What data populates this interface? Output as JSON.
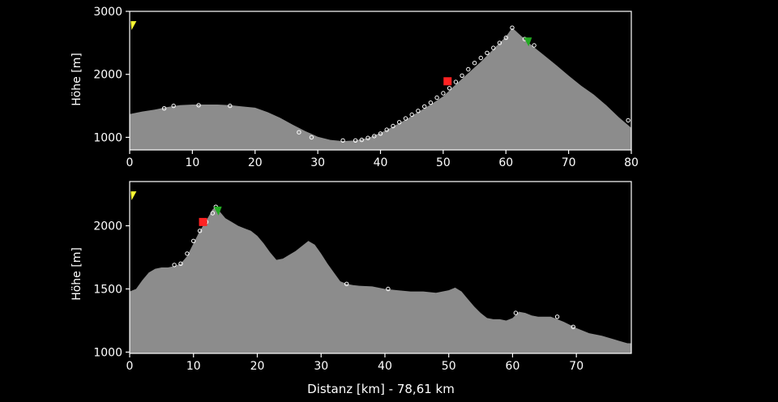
{
  "colors": {
    "background": "#000000",
    "area": "#8c8c8c",
    "axis": "#ffffff",
    "marker": "#ffffff",
    "start_flag": "#ffff33",
    "peak_flag": "#22aa22",
    "red_marker": "#ff2222"
  },
  "x_axis_title": "Distanz [km] - 78,61 km",
  "chart_data": [
    {
      "type": "area",
      "title": "",
      "ylabel": "Höhe [m]",
      "xlim": [
        0,
        80
      ],
      "ylim": [
        800,
        3000
      ],
      "x_ticks": [
        0,
        10,
        20,
        30,
        40,
        50,
        60,
        70,
        80
      ],
      "y_ticks": [
        1000,
        2000,
        3000
      ],
      "profile": {
        "x": [
          0,
          2,
          4,
          6,
          8,
          10,
          12,
          14,
          16,
          18,
          20,
          22,
          24,
          26,
          28,
          30,
          32,
          34,
          36,
          38,
          40,
          42,
          44,
          46,
          48,
          50,
          52,
          54,
          56,
          58,
          60,
          61,
          62,
          64,
          66,
          68,
          70,
          72,
          74,
          76,
          78,
          80
        ],
        "y": [
          1370,
          1410,
          1440,
          1480,
          1510,
          1520,
          1520,
          1520,
          1510,
          1490,
          1470,
          1400,
          1310,
          1200,
          1100,
          1010,
          960,
          940,
          950,
          990,
          1070,
          1170,
          1280,
          1400,
          1520,
          1650,
          1840,
          2020,
          2200,
          2400,
          2600,
          2740,
          2650,
          2470,
          2310,
          2150,
          1980,
          1820,
          1680,
          1510,
          1320,
          1150
        ]
      },
      "markers": {
        "x": [
          5.5,
          7,
          11,
          16,
          27,
          29,
          34,
          36,
          37,
          38,
          39,
          40,
          41,
          42,
          43,
          44,
          45,
          46,
          47,
          48,
          49,
          50,
          51,
          52,
          53,
          54,
          55,
          56,
          57,
          58,
          59,
          60,
          61,
          63,
          64.5,
          79.5
        ],
        "y": [
          1460,
          1500,
          1510,
          1500,
          1080,
          1000,
          950,
          950,
          960,
          990,
          1020,
          1060,
          1120,
          1180,
          1240,
          1300,
          1360,
          1420,
          1490,
          1550,
          1630,
          1700,
          1780,
          1880,
          1980,
          2080,
          2180,
          2260,
          2340,
          2420,
          2500,
          2580,
          2740,
          2560,
          2460,
          1270
        ]
      },
      "start_flag": {
        "x": 0.3,
        "y": 2780
      },
      "red_marker": {
        "x": 50.7,
        "y": 1890
      },
      "peak_flag": {
        "x": 63.5,
        "y": 2520
      }
    },
    {
      "type": "area",
      "title": "",
      "ylabel": "Höhe [m]",
      "xlim": [
        0,
        78.61
      ],
      "ylim": [
        990,
        2350
      ],
      "x_ticks": [
        0,
        10,
        20,
        30,
        40,
        50,
        60,
        70
      ],
      "y_ticks": [
        1000,
        1500,
        2000
      ],
      "profile": {
        "x": [
          0,
          1,
          2,
          3,
          4,
          5,
          6,
          7,
          8,
          9,
          10,
          11,
          12,
          13,
          13.5,
          14,
          15,
          16,
          17,
          18,
          19,
          20,
          21,
          22,
          23,
          24,
          25,
          26,
          27,
          28,
          29,
          30,
          31,
          32,
          33,
          34,
          35,
          36,
          38,
          40,
          42,
          44,
          46,
          48,
          50,
          51,
          52,
          53,
          54,
          55,
          56,
          57,
          58,
          59,
          60,
          61,
          62,
          63,
          64,
          66,
          68,
          70,
          72,
          74,
          76,
          78,
          78.61
        ],
        "y": [
          1480,
          1500,
          1570,
          1630,
          1660,
          1670,
          1670,
          1680,
          1700,
          1760,
          1860,
          1960,
          2040,
          2130,
          2150,
          2120,
          2060,
          2030,
          2000,
          1980,
          1960,
          1920,
          1860,
          1790,
          1730,
          1740,
          1770,
          1800,
          1840,
          1880,
          1850,
          1780,
          1700,
          1630,
          1560,
          1540,
          1530,
          1525,
          1520,
          1500,
          1490,
          1480,
          1480,
          1470,
          1490,
          1510,
          1480,
          1420,
          1360,
          1310,
          1270,
          1260,
          1260,
          1250,
          1270,
          1320,
          1310,
          1290,
          1280,
          1280,
          1240,
          1190,
          1150,
          1130,
          1100,
          1070,
          1070
        ]
      },
      "markers": {
        "x": [
          7,
          8,
          9,
          10,
          11,
          12,
          13,
          13.5,
          34,
          40.5,
          60.5,
          67,
          69.5
        ],
        "y": [
          1690,
          1700,
          1780,
          1880,
          1960,
          2030,
          2100,
          2150,
          1540,
          1500,
          1310,
          1280,
          1200
        ]
      },
      "start_flag": {
        "x": 0.3,
        "y": 2240
      },
      "red_marker": {
        "x": 11.5,
        "y": 2030
      },
      "peak_flag": {
        "x": 13.8,
        "y": 2120
      }
    }
  ]
}
